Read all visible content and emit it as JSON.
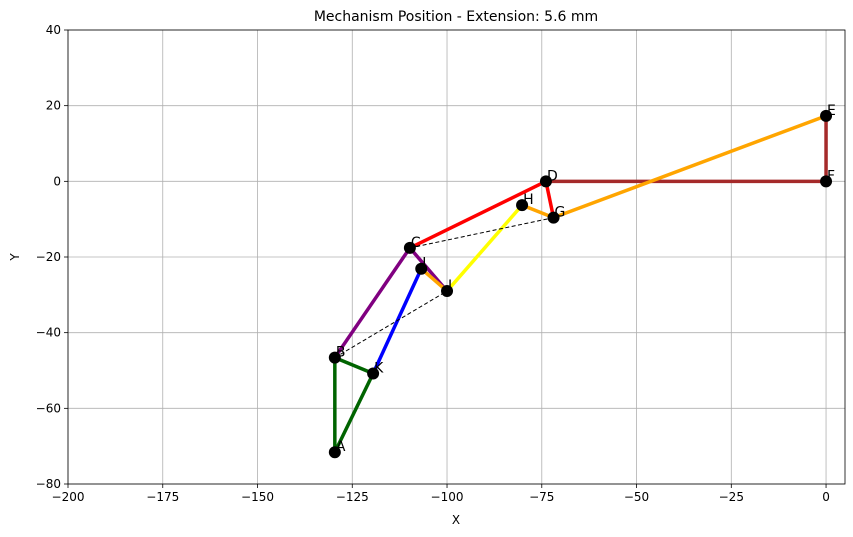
{
  "chart_data": {
    "type": "line",
    "title": "Mechanism Position - Extension: 5.6 mm",
    "xlabel": "X",
    "ylabel": "Y",
    "xlim": [
      -200,
      5
    ],
    "ylim": [
      -80,
      40
    ],
    "grid": true,
    "xticks": [
      -200,
      -175,
      -150,
      -125,
      -100,
      -75,
      -50,
      -25,
      0
    ],
    "yticks": [
      -80,
      -60,
      -40,
      -20,
      0,
      20,
      40
    ],
    "points": [
      {
        "label": "A",
        "x": -129.6,
        "y": -71.6
      },
      {
        "label": "B",
        "x": -129.6,
        "y": -46.6
      },
      {
        "label": "C",
        "x": -109.8,
        "y": -17.6
      },
      {
        "label": "D",
        "x": -73.9,
        "y": 0.0
      },
      {
        "label": "E",
        "x": 0.0,
        "y": 17.3
      },
      {
        "label": "F",
        "x": 0.0,
        "y": 0.0
      },
      {
        "label": "G",
        "x": -71.9,
        "y": -9.6
      },
      {
        "label": "H",
        "x": -80.2,
        "y": -6.3
      },
      {
        "label": "I",
        "x": -106.8,
        "y": -23.1
      },
      {
        "label": "J",
        "x": -100.0,
        "y": -29.0
      },
      {
        "label": "K",
        "x": -119.5,
        "y": -50.8
      }
    ],
    "links": [
      {
        "from": "A",
        "to": "B",
        "color": "#006400",
        "style": "solid"
      },
      {
        "from": "A",
        "to": "K",
        "color": "#006400",
        "style": "solid"
      },
      {
        "from": "B",
        "to": "K",
        "color": "#006400",
        "style": "solid"
      },
      {
        "from": "B",
        "to": "C",
        "color": "#800080",
        "style": "solid"
      },
      {
        "from": "C",
        "to": "J",
        "color": "#800080",
        "style": "solid"
      },
      {
        "from": "K",
        "to": "I",
        "color": "#0000ff",
        "style": "solid"
      },
      {
        "from": "C",
        "to": "D",
        "color": "#ff0000",
        "style": "solid"
      },
      {
        "from": "D",
        "to": "G",
        "color": "#ff0000",
        "style": "solid"
      },
      {
        "from": "D",
        "to": "F",
        "color": "#a52a2a",
        "style": "solid"
      },
      {
        "from": "F",
        "to": "E",
        "color": "#a52a2a",
        "style": "solid"
      },
      {
        "from": "G",
        "to": "E",
        "color": "#ffa500",
        "style": "solid"
      },
      {
        "from": "H",
        "to": "G",
        "color": "#ffa500",
        "style": "solid"
      },
      {
        "from": "I",
        "to": "J",
        "color": "#ffa500",
        "style": "solid"
      },
      {
        "from": "J",
        "to": "H",
        "color": "#ffff00",
        "style": "solid"
      },
      {
        "from": "B",
        "to": "J",
        "color": "#000000",
        "style": "dashed"
      },
      {
        "from": "C",
        "to": "G",
        "color": "#000000",
        "style": "dashed"
      }
    ]
  }
}
